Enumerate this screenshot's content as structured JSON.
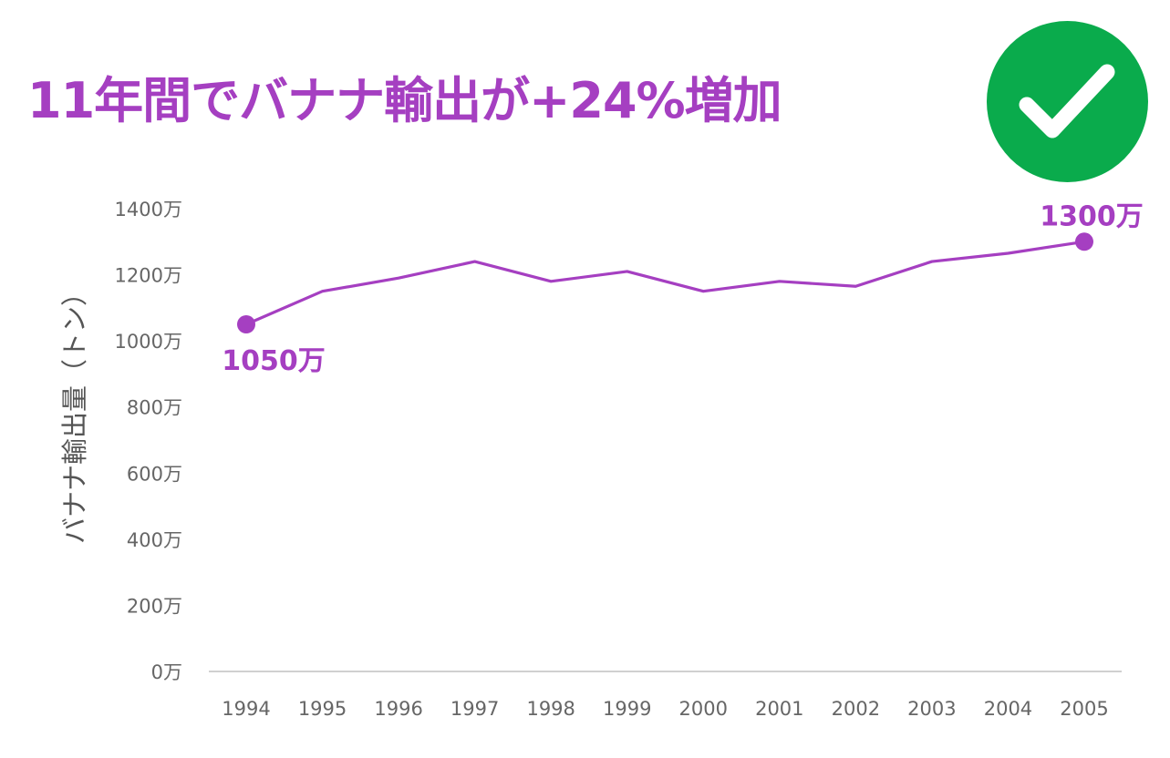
{
  "title": "11年間でバナナ輸出が+24%増加",
  "badge": {
    "icon": "check-circle-icon",
    "color": "#0aab4c"
  },
  "colors": {
    "series": "#a53fc1",
    "axis": "#d0d0d0",
    "tick": "#666666"
  },
  "chart_data": {
    "type": "line",
    "title": "11年間でバナナ輸出が+24%増加",
    "ylabel": "バナナ輸出量（トン）",
    "xlabel": "",
    "ylim": [
      0,
      14000000
    ],
    "grid": false,
    "x": [
      "1994",
      "1995",
      "1996",
      "1997",
      "1998",
      "1999",
      "2000",
      "2001",
      "2002",
      "2003",
      "2004",
      "2005"
    ],
    "y_ticks": [
      {
        "value": 0,
        "label": "0万"
      },
      {
        "value": 2000000,
        "label": "200万"
      },
      {
        "value": 4000000,
        "label": "400万"
      },
      {
        "value": 6000000,
        "label": "600万"
      },
      {
        "value": 8000000,
        "label": "800万"
      },
      {
        "value": 10000000,
        "label": "1000万"
      },
      {
        "value": 12000000,
        "label": "1200万"
      },
      {
        "value": 14000000,
        "label": "1400万"
      }
    ],
    "series": [
      {
        "values": [
          10500000,
          11500000,
          11900000,
          12400000,
          11800000,
          12100000,
          11500000,
          11800000,
          11650000,
          12400000,
          12650000,
          13000000
        ]
      }
    ],
    "annotations": [
      {
        "index": 0,
        "label": "1050万"
      },
      {
        "index": 11,
        "label": "1300万"
      }
    ]
  }
}
